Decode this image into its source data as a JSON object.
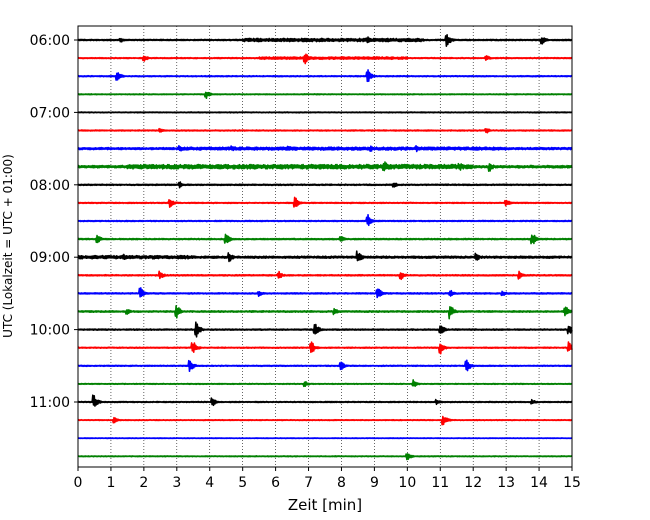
{
  "chart_data": {
    "type": "line",
    "xlabel": "Zeit  [min]",
    "ylabel": "UTC (Lokalzeit = UTC + 01:00)",
    "xlim": [
      0,
      15
    ],
    "x_ticks": [
      0,
      1,
      2,
      3,
      4,
      5,
      6,
      7,
      8,
      9,
      10,
      11,
      12,
      13,
      14,
      15
    ],
    "y_ticks": [
      "06:00",
      "07:00",
      "08:00",
      "09:00",
      "10:00",
      "11:00"
    ],
    "grid": "vertical dotted",
    "trace_interval_min": 15,
    "trace_colors": [
      "#000000",
      "#ff0000",
      "#0000ff",
      "#008000"
    ],
    "traces": [
      {
        "start": "06:00",
        "color": "#000000",
        "noise": 0.6,
        "bursts": [
          [
            1.3,
            3
          ],
          [
            5.5,
            2
          ],
          [
            8.8,
            4
          ],
          [
            11.2,
            8
          ],
          [
            14.1,
            4
          ]
        ],
        "noisy_ranges": [
          [
            5.0,
            10.5,
            1.6
          ]
        ]
      },
      {
        "start": "06:15",
        "color": "#ff0000",
        "noise": 0.5,
        "bursts": [
          [
            2.0,
            4
          ],
          [
            6.9,
            6
          ],
          [
            12.4,
            3
          ]
        ],
        "noisy_ranges": [
          [
            5.5,
            10.0,
            1.2
          ]
        ]
      },
      {
        "start": "06:30",
        "color": "#0000ff",
        "noise": 0.5,
        "bursts": [
          [
            1.2,
            5
          ],
          [
            8.8,
            7
          ]
        ],
        "noisy_ranges": []
      },
      {
        "start": "06:45",
        "color": "#008000",
        "noise": 0.4,
        "bursts": [
          [
            3.9,
            4
          ]
        ],
        "noisy_ranges": []
      },
      {
        "start": "07:00",
        "color": "#000000",
        "noise": 0.4,
        "bursts": [],
        "noisy_ranges": []
      },
      {
        "start": "07:15",
        "color": "#ff0000",
        "noise": 0.5,
        "bursts": [
          [
            2.5,
            2
          ],
          [
            12.4,
            3
          ]
        ],
        "noisy_ranges": []
      },
      {
        "start": "07:30",
        "color": "#0000ff",
        "noise": 1.0,
        "bursts": [
          [
            3.1,
            3
          ],
          [
            4.7,
            3
          ],
          [
            6.4,
            3
          ],
          [
            8.9,
            3
          ],
          [
            10.3,
            3
          ]
        ],
        "noisy_ranges": [
          [
            3.0,
            13.0,
            1.5
          ]
        ]
      },
      {
        "start": "07:45",
        "color": "#008000",
        "noise": 1.2,
        "bursts": [
          [
            9.3,
            7
          ],
          [
            11.6,
            4
          ],
          [
            12.5,
            5
          ]
        ],
        "noisy_ranges": [
          [
            1.5,
            12.0,
            2.2
          ]
        ]
      },
      {
        "start": "08:00",
        "color": "#000000",
        "noise": 0.6,
        "bursts": [
          [
            3.1,
            3
          ],
          [
            9.6,
            3
          ]
        ],
        "noisy_ranges": []
      },
      {
        "start": "08:15",
        "color": "#ff0000",
        "noise": 0.5,
        "bursts": [
          [
            2.8,
            5
          ],
          [
            6.6,
            7
          ],
          [
            13.0,
            4
          ]
        ],
        "noisy_ranges": []
      },
      {
        "start": "08:30",
        "color": "#0000ff",
        "noise": 0.5,
        "bursts": [
          [
            8.8,
            7
          ]
        ],
        "noisy_ranges": []
      },
      {
        "start": "08:45",
        "color": "#008000",
        "noise": 0.6,
        "bursts": [
          [
            0.6,
            4
          ],
          [
            4.5,
            6
          ],
          [
            8.0,
            3
          ],
          [
            13.8,
            7
          ]
        ],
        "noisy_ranges": []
      },
      {
        "start": "09:00",
        "color": "#000000",
        "noise": 1.0,
        "bursts": [
          [
            1.4,
            3
          ],
          [
            4.6,
            5
          ],
          [
            8.5,
            7
          ],
          [
            12.1,
            4
          ]
        ],
        "noisy_ranges": [
          [
            0.0,
            3.5,
            1.6
          ]
        ]
      },
      {
        "start": "09:15",
        "color": "#ff0000",
        "noise": 0.6,
        "bursts": [
          [
            2.5,
            4
          ],
          [
            6.1,
            4
          ],
          [
            9.8,
            5
          ],
          [
            13.4,
            4
          ]
        ],
        "noisy_ranges": []
      },
      {
        "start": "09:30",
        "color": "#0000ff",
        "noise": 0.6,
        "bursts": [
          [
            1.9,
            7
          ],
          [
            5.5,
            3
          ],
          [
            9.1,
            7
          ],
          [
            11.3,
            4
          ],
          [
            12.9,
            3
          ]
        ],
        "noisy_ranges": []
      },
      {
        "start": "09:45",
        "color": "#008000",
        "noise": 0.7,
        "bursts": [
          [
            1.5,
            3
          ],
          [
            3.0,
            7
          ],
          [
            7.8,
            3
          ],
          [
            11.3,
            8
          ],
          [
            14.8,
            6
          ]
        ],
        "noisy_ranges": []
      },
      {
        "start": "10:00",
        "color": "#000000",
        "noise": 0.6,
        "bursts": [
          [
            3.6,
            8
          ],
          [
            7.2,
            7
          ],
          [
            11.0,
            7
          ],
          [
            14.9,
            6
          ]
        ],
        "noisy_ranges": []
      },
      {
        "start": "10:15",
        "color": "#ff0000",
        "noise": 0.5,
        "bursts": [
          [
            3.5,
            7
          ],
          [
            7.1,
            6
          ],
          [
            11.0,
            7
          ],
          [
            14.9,
            6
          ]
        ],
        "noisy_ranges": []
      },
      {
        "start": "10:30",
        "color": "#0000ff",
        "noise": 0.5,
        "bursts": [
          [
            3.4,
            7
          ],
          [
            8.0,
            4
          ],
          [
            11.8,
            7
          ]
        ],
        "noisy_ranges": []
      },
      {
        "start": "10:45",
        "color": "#008000",
        "noise": 0.4,
        "bursts": [
          [
            6.9,
            3
          ],
          [
            10.2,
            4
          ]
        ],
        "noisy_ranges": []
      },
      {
        "start": "11:00",
        "color": "#000000",
        "noise": 0.5,
        "bursts": [
          [
            0.5,
            7
          ],
          [
            4.1,
            4
          ],
          [
            10.9,
            3
          ],
          [
            13.8,
            3
          ]
        ],
        "noisy_ranges": []
      },
      {
        "start": "11:15",
        "color": "#ff0000",
        "noise": 0.4,
        "bursts": [
          [
            1.1,
            3
          ],
          [
            11.1,
            6
          ]
        ],
        "noisy_ranges": []
      },
      {
        "start": "11:30",
        "color": "#0000ff",
        "noise": 0.3,
        "bursts": [],
        "noisy_ranges": []
      },
      {
        "start": "11:45",
        "color": "#008000",
        "noise": 0.4,
        "bursts": [
          [
            10.0,
            4
          ]
        ],
        "noisy_ranges": []
      }
    ]
  }
}
